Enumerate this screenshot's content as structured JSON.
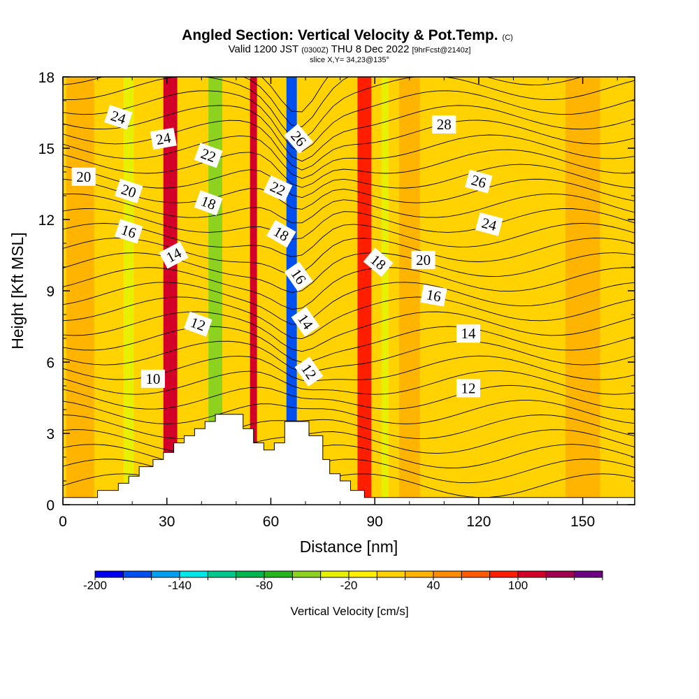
{
  "header": {
    "title_main": "Angled Section: Vertical Velocity & Pot.Temp.",
    "title_tag": "(C)",
    "valid_prefix": "Valid 1200 JST",
    "valid_utc": "(0300Z)",
    "valid_date": "THU 8 Dec 2022",
    "forecast": "[9hrFcst@2140z]",
    "slice": "slice X,Y= 34,23@135°"
  },
  "chart_data": {
    "type": "heatmap",
    "xlabel": "Distance [nm]",
    "ylabel": "Height [Kft MSL]",
    "xlim": [
      0,
      165
    ],
    "ylim": [
      0,
      18
    ],
    "x_ticks": [
      "0",
      "30",
      "60",
      "90",
      "120",
      "150"
    ],
    "y_ticks": [
      "0",
      "3",
      "6",
      "9",
      "12",
      "15",
      "18"
    ],
    "colorbar": {
      "label": "Vertical Velocity [cm/s]",
      "tick_labels": [
        "-200",
        "-140",
        "-80",
        "-20",
        "40",
        "100"
      ],
      "levels": [
        -200,
        -180,
        -160,
        -140,
        -120,
        -100,
        -80,
        -60,
        -40,
        -20,
        0,
        20,
        40,
        60,
        80,
        100,
        120,
        140
      ],
      "colors": [
        "#0000ee",
        "#0050f0",
        "#00a0f0",
        "#00e6e6",
        "#00c88c",
        "#00b450",
        "#28b41e",
        "#8cd21e",
        "#e6f000",
        "#fff000",
        "#ffd200",
        "#ffb400",
        "#ff8c00",
        "#ff5a00",
        "#ff1e00",
        "#d20028",
        "#a00050",
        "#6e0082"
      ]
    },
    "velocity_streaks": [
      {
        "x": 5,
        "width": 8,
        "value": 20
      },
      {
        "x": 19,
        "width": 3,
        "value": -40
      },
      {
        "x": 31,
        "width": 4,
        "value": 100
      },
      {
        "x": 44,
        "width": 4,
        "value": -60
      },
      {
        "x": 55,
        "width": 2,
        "value": 100
      },
      {
        "x": 66,
        "width": 3,
        "value": -170
      },
      {
        "x": 87,
        "width": 4,
        "value": 80
      },
      {
        "x": 93,
        "width": 2,
        "value": -40
      },
      {
        "x": 100,
        "width": 6,
        "value": 20
      },
      {
        "x": 150,
        "width": 10,
        "value": 20
      }
    ],
    "theta_contour_labels": [
      {
        "text": "24",
        "x": 16,
        "y": 16.3,
        "rot": 18
      },
      {
        "text": "24",
        "x": 29,
        "y": 15.4,
        "rot": -10
      },
      {
        "text": "22",
        "x": 42,
        "y": 14.7,
        "rot": 20
      },
      {
        "text": "20",
        "x": 6,
        "y": 13.8,
        "rot": 0
      },
      {
        "text": "20",
        "x": 19,
        "y": 13.2,
        "rot": 18
      },
      {
        "text": "18",
        "x": 42,
        "y": 12.7,
        "rot": 20
      },
      {
        "text": "16",
        "x": 19,
        "y": 11.5,
        "rot": 18
      },
      {
        "text": "14",
        "x": 32,
        "y": 10.5,
        "rot": -28
      },
      {
        "text": "12",
        "x": 39,
        "y": 7.6,
        "rot": 20
      },
      {
        "text": "10",
        "x": 26,
        "y": 5.3,
        "rot": 0
      },
      {
        "text": "26",
        "x": 68,
        "y": 15.4,
        "rot": 50
      },
      {
        "text": "22",
        "x": 62,
        "y": 13.3,
        "rot": 25
      },
      {
        "text": "18",
        "x": 63,
        "y": 11.4,
        "rot": 30
      },
      {
        "text": "16",
        "x": 68,
        "y": 9.6,
        "rot": 55
      },
      {
        "text": "14",
        "x": 70,
        "y": 7.7,
        "rot": 55
      },
      {
        "text": "12",
        "x": 71,
        "y": 5.6,
        "rot": 55
      },
      {
        "text": "28",
        "x": 110,
        "y": 16.0,
        "rot": 0
      },
      {
        "text": "26",
        "x": 120,
        "y": 13.6,
        "rot": 15
      },
      {
        "text": "24",
        "x": 123,
        "y": 11.8,
        "rot": 15
      },
      {
        "text": "18",
        "x": 91,
        "y": 10.2,
        "rot": 40
      },
      {
        "text": "20",
        "x": 104,
        "y": 10.3,
        "rot": 0
      },
      {
        "text": "16",
        "x": 107,
        "y": 8.8,
        "rot": 10
      },
      {
        "text": "14",
        "x": 117,
        "y": 7.2,
        "rot": 0
      },
      {
        "text": "12",
        "x": 117,
        "y": 4.9,
        "rot": 0
      }
    ],
    "terrain_profile": [
      [
        0,
        0.3
      ],
      [
        10,
        0.3
      ],
      [
        10,
        0.6
      ],
      [
        16,
        0.6
      ],
      [
        16,
        0.9
      ],
      [
        19,
        0.9
      ],
      [
        19,
        1.2
      ],
      [
        22,
        1.2
      ],
      [
        22,
        1.6
      ],
      [
        26,
        1.6
      ],
      [
        26,
        1.9
      ],
      [
        29,
        1.9
      ],
      [
        29,
        2.2
      ],
      [
        32,
        2.2
      ],
      [
        32,
        2.6
      ],
      [
        35,
        2.6
      ],
      [
        35,
        2.9
      ],
      [
        38,
        2.9
      ],
      [
        38,
        3.2
      ],
      [
        41,
        3.2
      ],
      [
        41,
        3.5
      ],
      [
        44,
        3.5
      ],
      [
        44,
        3.8
      ],
      [
        52,
        3.8
      ],
      [
        52,
        3.2
      ],
      [
        55,
        3.2
      ],
      [
        55,
        2.6
      ],
      [
        58,
        2.6
      ],
      [
        58,
        2.3
      ],
      [
        61,
        2.3
      ],
      [
        61,
        2.6
      ],
      [
        64,
        2.6
      ],
      [
        64,
        3.5
      ],
      [
        71,
        3.5
      ],
      [
        71,
        2.9
      ],
      [
        75,
        2.9
      ],
      [
        75,
        1.9
      ],
      [
        77,
        1.9
      ],
      [
        77,
        1.3
      ],
      [
        80,
        1.3
      ],
      [
        80,
        1.0
      ],
      [
        83,
        1.0
      ],
      [
        83,
        0.6
      ],
      [
        87,
        0.6
      ],
      [
        87,
        0.3
      ],
      [
        165,
        0.3
      ]
    ]
  }
}
